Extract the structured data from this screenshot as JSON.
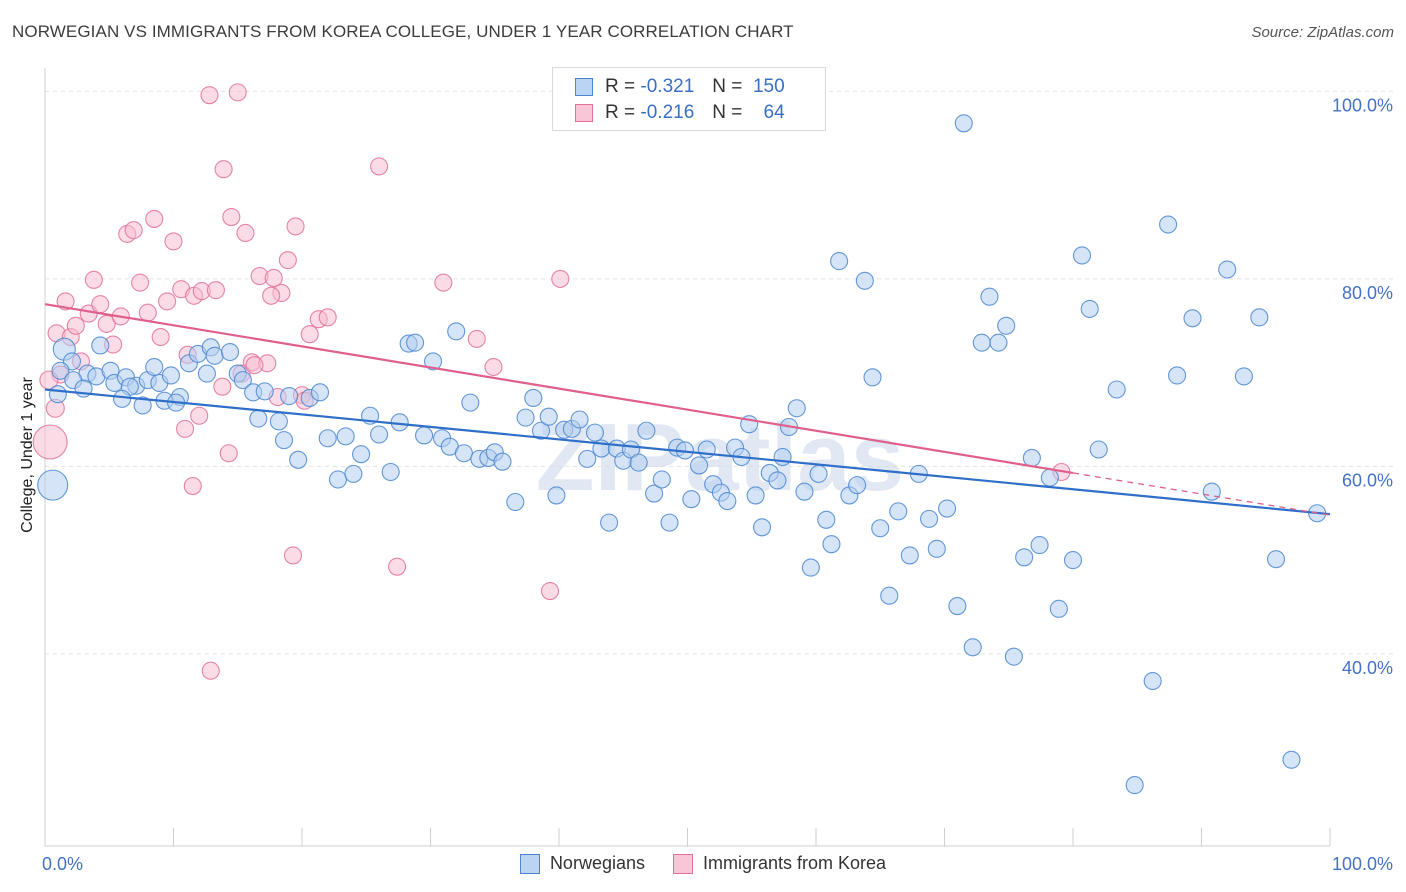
{
  "title": "NORWEGIAN VS IMMIGRANTS FROM KOREA COLLEGE, UNDER 1 YEAR CORRELATION CHART",
  "source": "Source: ZipAtlas.com",
  "watermark": "ZIPatlas",
  "legend": {
    "row1": {
      "r_label": "R =",
      "r_value": "-0.321",
      "n_label": "N =",
      "n_value": "150"
    },
    "row2": {
      "r_label": "R =",
      "r_value": "-0.216",
      "n_label": "N =",
      "n_value": "64"
    }
  },
  "bottom_legend": {
    "series1": "Norwegians",
    "series2": "Immigrants from Korea"
  },
  "colors": {
    "blue": "#4a86d0",
    "blue_fill": "#aac8ef",
    "pink": "#e2709a",
    "pink_fill": "#f5b8cc",
    "axis_text": "#4472c4",
    "grid": "#e3e3e3"
  },
  "chart_data": {
    "type": "scatter",
    "title": "NORWEGIAN VS IMMIGRANTS FROM KOREA COLLEGE, UNDER 1 YEAR CORRELATION CHART",
    "xlabel": "",
    "ylabel": "College, Under 1 year",
    "xlim": [
      0,
      100
    ],
    "ylim": [
      19.5,
      102.5
    ],
    "x_tick_labels": [
      "0.0%",
      "100.0%"
    ],
    "y_ticks": [
      40,
      60,
      80,
      100
    ],
    "y_tick_labels": [
      "40.0%",
      "60.0%",
      "80.0%",
      "100.0%"
    ],
    "grid": true,
    "series": [
      {
        "name": "Norwegians",
        "r": -0.321,
        "n": 150,
        "trend": {
          "x0": 0,
          "y0": 68.2,
          "x1": 100,
          "y1": 54.9,
          "dashed_from": null
        },
        "points": [
          [
            1.5,
            72.5
          ],
          [
            2.1,
            71.2
          ],
          [
            1.2,
            70.2
          ],
          [
            3.3,
            69.9
          ],
          [
            4.0,
            69.6
          ],
          [
            5.1,
            70.2
          ],
          [
            5.4,
            68.9
          ],
          [
            6.3,
            69.5
          ],
          [
            7.1,
            68.6
          ],
          [
            8.0,
            69.2
          ],
          [
            6.6,
            68.5
          ],
          [
            8.9,
            68.9
          ],
          [
            9.8,
            69.7
          ],
          [
            10.5,
            67.4
          ],
          [
            11.2,
            71.0
          ],
          [
            11.9,
            72.0
          ],
          [
            12.6,
            69.9
          ],
          [
            12.9,
            72.7
          ],
          [
            13.2,
            71.8
          ],
          [
            14.4,
            72.2
          ],
          [
            15.0,
            69.9
          ],
          [
            15.4,
            69.2
          ],
          [
            16.2,
            67.9
          ],
          [
            17.1,
            68.0
          ],
          [
            16.6,
            65.1
          ],
          [
            18.2,
            64.8
          ],
          [
            18.6,
            62.8
          ],
          [
            19.0,
            67.5
          ],
          [
            19.7,
            60.7
          ],
          [
            20.6,
            67.3
          ],
          [
            21.4,
            67.9
          ],
          [
            22.0,
            63.0
          ],
          [
            22.8,
            58.6
          ],
          [
            23.4,
            63.2
          ],
          [
            24.0,
            59.2
          ],
          [
            24.6,
            61.3
          ],
          [
            25.3,
            65.4
          ],
          [
            26.0,
            63.4
          ],
          [
            26.9,
            59.4
          ],
          [
            27.6,
            64.7
          ],
          [
            28.3,
            73.1
          ],
          [
            28.8,
            73.2
          ],
          [
            29.5,
            63.3
          ],
          [
            30.2,
            71.2
          ],
          [
            30.9,
            63.0
          ],
          [
            31.5,
            62.1
          ],
          [
            32.0,
            74.4
          ],
          [
            32.6,
            61.4
          ],
          [
            33.1,
            66.8
          ],
          [
            33.8,
            60.8
          ],
          [
            34.5,
            60.9
          ],
          [
            35.0,
            61.5
          ],
          [
            35.6,
            60.5
          ],
          [
            36.6,
            56.2
          ],
          [
            37.4,
            65.2
          ],
          [
            38.0,
            67.3
          ],
          [
            38.6,
            63.8
          ],
          [
            39.2,
            65.3
          ],
          [
            39.8,
            56.9
          ],
          [
            40.4,
            63.9
          ],
          [
            41.0,
            64.0
          ],
          [
            41.6,
            65.0
          ],
          [
            42.2,
            60.8
          ],
          [
            42.8,
            63.6
          ],
          [
            43.3,
            61.9
          ],
          [
            43.9,
            54.0
          ],
          [
            44.5,
            61.9
          ],
          [
            45.0,
            60.6
          ],
          [
            45.6,
            61.8
          ],
          [
            46.2,
            60.4
          ],
          [
            46.8,
            63.8
          ],
          [
            47.4,
            57.1
          ],
          [
            48.0,
            58.6
          ],
          [
            48.6,
            54.0
          ],
          [
            49.2,
            62.0
          ],
          [
            49.8,
            61.7
          ],
          [
            50.3,
            56.5
          ],
          [
            50.9,
            60.1
          ],
          [
            51.5,
            61.8
          ],
          [
            52.0,
            58.1
          ],
          [
            52.6,
            57.2
          ],
          [
            53.1,
            56.3
          ],
          [
            53.7,
            62.0
          ],
          [
            54.2,
            61.0
          ],
          [
            54.8,
            64.5
          ],
          [
            55.3,
            56.9
          ],
          [
            55.8,
            53.5
          ],
          [
            56.4,
            59.3
          ],
          [
            57.0,
            58.5
          ],
          [
            57.4,
            61.0
          ],
          [
            57.9,
            64.2
          ],
          [
            58.5,
            66.2
          ],
          [
            59.1,
            57.3
          ],
          [
            59.6,
            49.2
          ],
          [
            60.2,
            59.2
          ],
          [
            60.8,
            54.3
          ],
          [
            61.2,
            51.7
          ],
          [
            61.8,
            81.9
          ],
          [
            62.6,
            56.9
          ],
          [
            63.2,
            58.0
          ],
          [
            63.8,
            79.8
          ],
          [
            64.4,
            69.5
          ],
          [
            65.0,
            53.4
          ],
          [
            65.7,
            46.2
          ],
          [
            66.4,
            55.2
          ],
          [
            67.3,
            50.5
          ],
          [
            68.0,
            59.2
          ],
          [
            68.8,
            54.4
          ],
          [
            69.4,
            51.2
          ],
          [
            70.2,
            55.5
          ],
          [
            71.0,
            45.1
          ],
          [
            71.5,
            96.6
          ],
          [
            72.2,
            40.7
          ],
          [
            72.9,
            73.2
          ],
          [
            73.5,
            78.1
          ],
          [
            74.2,
            73.2
          ],
          [
            74.8,
            75.0
          ],
          [
            75.4,
            39.7
          ],
          [
            76.2,
            50.3
          ],
          [
            76.8,
            60.9
          ],
          [
            77.4,
            51.6
          ],
          [
            78.2,
            58.8
          ],
          [
            78.9,
            44.8
          ],
          [
            80.0,
            50.0
          ],
          [
            80.7,
            82.5
          ],
          [
            81.3,
            76.8
          ],
          [
            82.0,
            61.8
          ],
          [
            83.4,
            68.2
          ],
          [
            84.8,
            26.0
          ],
          [
            86.2,
            37.1
          ],
          [
            87.4,
            85.8
          ],
          [
            88.1,
            69.7
          ],
          [
            89.3,
            75.8
          ],
          [
            90.8,
            57.3
          ],
          [
            92.0,
            81.0
          ],
          [
            93.3,
            69.6
          ],
          [
            94.5,
            75.9
          ],
          [
            95.8,
            50.1
          ],
          [
            97.0,
            28.7
          ],
          [
            99.0,
            55.0
          ],
          [
            1.0,
            67.7
          ],
          [
            2.2,
            69.2
          ],
          [
            3.0,
            68.3
          ],
          [
            4.3,
            72.9
          ],
          [
            6.0,
            67.2
          ],
          [
            7.6,
            66.5
          ],
          [
            8.5,
            70.6
          ],
          [
            9.3,
            67.0
          ],
          [
            10.2,
            66.8
          ],
          [
            0.6,
            58.0
          ]
        ]
      },
      {
        "name": "Immigrants from Korea",
        "r": -0.216,
        "n": 64,
        "trend": {
          "x0": 0,
          "y0": 77.3,
          "x1": 80,
          "y1": 59.3,
          "dashed_from": 80,
          "dashed_to_x": 100,
          "dashed_to_y": 54.8
        },
        "points": [
          [
            0.4,
            62.6
          ],
          [
            0.9,
            74.2
          ],
          [
            1.2,
            69.8
          ],
          [
            1.6,
            77.6
          ],
          [
            2.0,
            73.8
          ],
          [
            2.4,
            75.0
          ],
          [
            2.8,
            71.2
          ],
          [
            3.4,
            76.3
          ],
          [
            3.8,
            79.9
          ],
          [
            4.3,
            77.3
          ],
          [
            4.8,
            75.2
          ],
          [
            5.3,
            73.0
          ],
          [
            5.9,
            76.0
          ],
          [
            6.4,
            84.8
          ],
          [
            6.9,
            85.2
          ],
          [
            7.4,
            79.6
          ],
          [
            8.0,
            76.4
          ],
          [
            8.5,
            86.4
          ],
          [
            9.0,
            73.8
          ],
          [
            9.5,
            77.6
          ],
          [
            10.0,
            84.0
          ],
          [
            10.6,
            78.9
          ],
          [
            11.1,
            71.9
          ],
          [
            11.6,
            78.2
          ],
          [
            12.2,
            78.7
          ],
          [
            12.8,
            99.6
          ],
          [
            13.3,
            78.8
          ],
          [
            13.9,
            91.7
          ],
          [
            14.5,
            86.6
          ],
          [
            15.0,
            99.9
          ],
          [
            15.6,
            84.9
          ],
          [
            16.1,
            71.1
          ],
          [
            16.7,
            80.3
          ],
          [
            17.3,
            71.0
          ],
          [
            17.8,
            80.1
          ],
          [
            18.4,
            78.5
          ],
          [
            18.9,
            82.0
          ],
          [
            19.5,
            85.6
          ],
          [
            20.0,
            67.6
          ],
          [
            20.6,
            74.1
          ],
          [
            21.3,
            75.7
          ],
          [
            22.0,
            75.9
          ],
          [
            10.9,
            64.0
          ],
          [
            11.5,
            57.9
          ],
          [
            12.0,
            65.4
          ],
          [
            12.9,
            38.2
          ],
          [
            13.8,
            68.5
          ],
          [
            14.3,
            61.4
          ],
          [
            15.3,
            69.9
          ],
          [
            16.3,
            70.8
          ],
          [
            17.6,
            78.2
          ],
          [
            18.1,
            67.4
          ],
          [
            19.3,
            50.5
          ],
          [
            20.2,
            67.0
          ],
          [
            26.0,
            92.0
          ],
          [
            27.4,
            49.3
          ],
          [
            31.0,
            79.6
          ],
          [
            33.6,
            73.6
          ],
          [
            34.9,
            70.6
          ],
          [
            39.3,
            46.7
          ],
          [
            40.1,
            80.0
          ],
          [
            79.1,
            59.4
          ],
          [
            0.3,
            69.2
          ],
          [
            0.8,
            66.2
          ]
        ]
      }
    ]
  }
}
